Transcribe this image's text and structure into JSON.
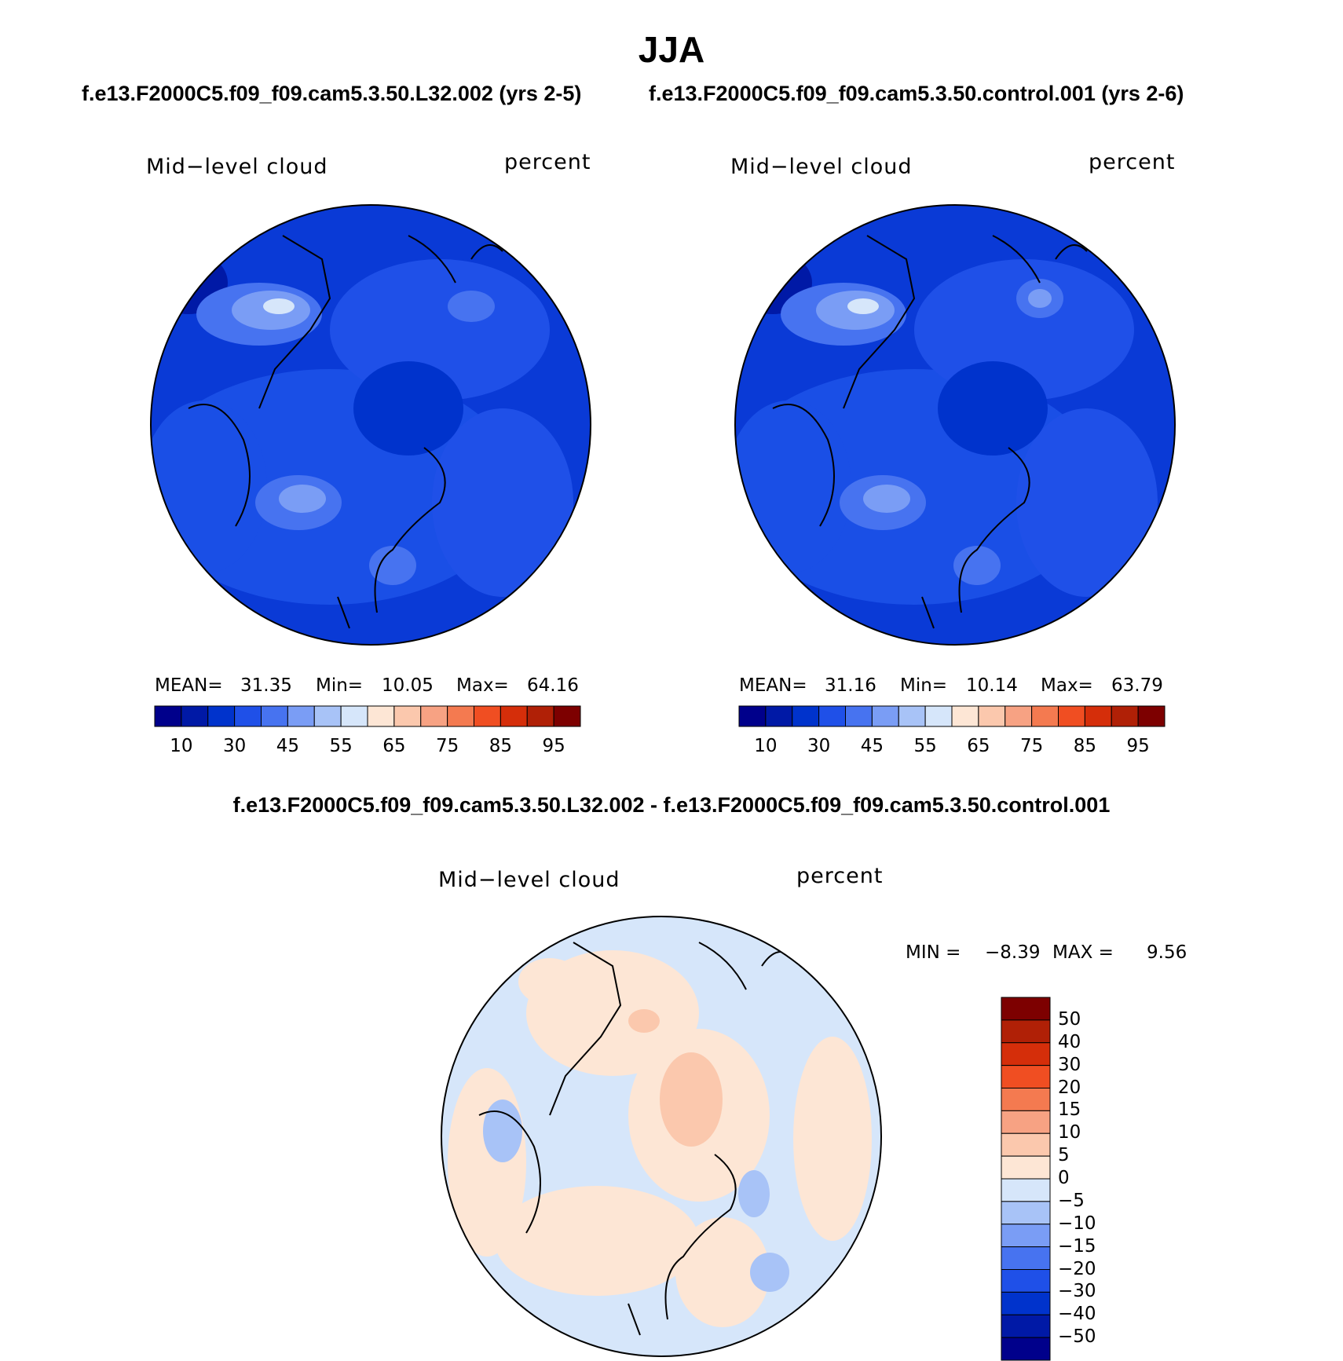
{
  "title": "JJA",
  "panels": [
    {
      "run_title": "f.e13.F2000C5.f09_f09.cam5.3.50.L32.002 (yrs 2-5)",
      "variable": "Mid−level cloud",
      "units": "percent",
      "stats": {
        "mean_label": "MEAN=",
        "mean": "31.35",
        "min_label": "Min=",
        "min": "10.05",
        "max_label": "Max=",
        "max": "64.16"
      }
    },
    {
      "run_title": "f.e13.F2000C5.f09_f09.cam5.3.50.control.001 (yrs 2-6)",
      "variable": "Mid−level cloud",
      "units": "percent",
      "stats": {
        "mean_label": "MEAN=",
        "mean": "31.16",
        "min_label": "Min=",
        "min": "10.14",
        "max_label": "Max=",
        "max": "63.79"
      }
    }
  ],
  "abs_colorbar": {
    "colors": [
      "#00008b",
      "#0019a6",
      "#0033cc",
      "#1f50e8",
      "#4773f0",
      "#7a9df5",
      "#a8c3f7",
      "#d6e6fa",
      "#fde6d5",
      "#fbc8ad",
      "#f7a283",
      "#f47a50",
      "#f04e22",
      "#d52e0a",
      "#b02006",
      "#7d0000"
    ],
    "tick_labels": [
      "10",
      "30",
      "45",
      "55",
      "65",
      "75",
      "85",
      "95"
    ]
  },
  "diff_panel": {
    "title": "f.e13.F2000C5.f09_f09.cam5.3.50.L32.002 - f.e13.F2000C5.f09_f09.cam5.3.50.control.001",
    "variable": "Mid−level cloud",
    "units": "percent",
    "stats": {
      "min_label": "MIN =",
      "min": "−8.39",
      "max_label": "MAX =",
      "max": "9.56"
    }
  },
  "diff_colorbar": {
    "colors": [
      "#7d0000",
      "#b02006",
      "#d52e0a",
      "#f04e22",
      "#f47a50",
      "#f7a283",
      "#fbc8ad",
      "#fde6d5",
      "#d6e6fa",
      "#a8c3f7",
      "#7a9df5",
      "#4773f0",
      "#1f50e8",
      "#0033cc",
      "#0019a6",
      "#00008b"
    ],
    "tick_labels": [
      "50",
      "40",
      "30",
      "20",
      "15",
      "10",
      "5",
      "0",
      "−5",
      "−10",
      "−15",
      "−20",
      "−30",
      "−40",
      "−50"
    ]
  }
}
